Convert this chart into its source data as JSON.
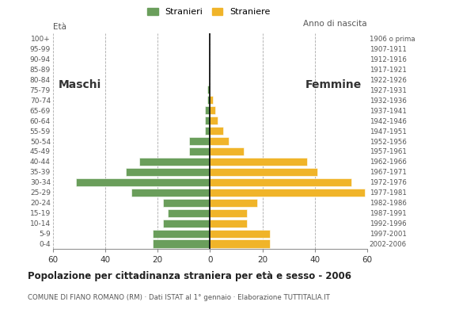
{
  "age_groups": [
    "0-4",
    "5-9",
    "10-14",
    "15-19",
    "20-24",
    "25-29",
    "30-34",
    "35-39",
    "40-44",
    "45-49",
    "50-54",
    "55-59",
    "60-64",
    "65-69",
    "70-74",
    "75-79",
    "80-84",
    "85-89",
    "90-94",
    "95-99",
    "100+"
  ],
  "birth_years": [
    "2002-2006",
    "1997-2001",
    "1992-1996",
    "1987-1991",
    "1982-1986",
    "1977-1981",
    "1972-1976",
    "1967-1971",
    "1962-1966",
    "1957-1961",
    "1952-1956",
    "1947-1951",
    "1942-1946",
    "1937-1941",
    "1932-1936",
    "1927-1931",
    "1922-1926",
    "1917-1921",
    "1912-1916",
    "1907-1911",
    "1906 o prima"
  ],
  "males": [
    22,
    22,
    18,
    16,
    18,
    30,
    51,
    32,
    27,
    8,
    8,
    2,
    2,
    2,
    1,
    1,
    0,
    0,
    0,
    0,
    0
  ],
  "females": [
    23,
    23,
    14,
    14,
    18,
    59,
    54,
    41,
    37,
    13,
    7,
    5,
    3,
    2,
    1,
    0,
    0,
    0,
    0,
    0,
    0
  ],
  "male_color": "#6a9e5b",
  "female_color": "#f0b429",
  "background_color": "#ffffff",
  "grid_color": "#aaaaaa",
  "title": "Popolazione per cittadinanza straniera per età e sesso - 2006",
  "subtitle": "COMUNE DI FIANO ROMANO (RM) · Dati ISTAT al 1° gennaio · Elaborazione TUTTITALIA.IT",
  "legend_male": "Stranieri",
  "legend_female": "Straniere",
  "label_eta": "Età",
  "label_anno": "Anno di nascita",
  "label_maschi": "Maschi",
  "label_femmine": "Femmine",
  "xmax": 60
}
